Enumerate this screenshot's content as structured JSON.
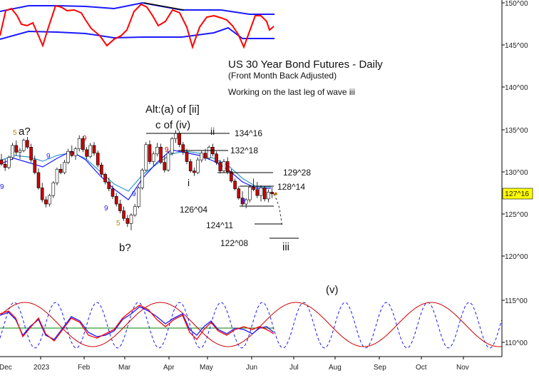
{
  "chart_data": {
    "type": "candlestick",
    "title": "US 30 Year Bond Futures - Daily",
    "subtitle": "(Front Month Back Adjusted)",
    "comment": "Working on the last leg of wave iii",
    "y_axis": {
      "range": [
        110,
        150
      ],
      "ticks": [
        "150^00",
        "145^00",
        "140^00",
        "135^00",
        "130^00",
        "125^00",
        "120^00",
        "115^00",
        "110^00"
      ]
    },
    "x_axis": {
      "labels": [
        "Dec",
        "2023",
        "Feb",
        "Mar",
        "Apr",
        "May",
        "Jun",
        "Jul",
        "Aug",
        "Sep",
        "Oct",
        "Nov"
      ]
    },
    "last_price": "127^16",
    "accent_color": "#ffff00",
    "candle_up_color": "#ffffff",
    "candle_down_color": "#cc0000",
    "ma_colors": [
      "#1a1aff",
      "#3399cc"
    ],
    "candles": [
      [
        131.5,
        132.2,
        130.8,
        131.0
      ],
      [
        131.0,
        131.6,
        130.2,
        130.6
      ],
      [
        130.6,
        132.0,
        130.4,
        131.8
      ],
      [
        131.8,
        133.5,
        131.5,
        133.2
      ],
      [
        133.2,
        133.8,
        132.0,
        132.4
      ],
      [
        132.4,
        132.9,
        131.6,
        132.6
      ],
      [
        132.6,
        134.0,
        132.4,
        133.8
      ],
      [
        133.8,
        134.2,
        132.8,
        133.0
      ],
      [
        133.0,
        133.4,
        131.2,
        131.5
      ],
      [
        131.5,
        132.0,
        129.8,
        130.0
      ],
      [
        130.0,
        130.5,
        128.0,
        128.2
      ],
      [
        128.2,
        128.8,
        126.5,
        126.8
      ],
      [
        126.8,
        127.2,
        125.9,
        126.3
      ],
      [
        126.3,
        127.5,
        126.0,
        127.3
      ],
      [
        127.3,
        129.0,
        127.0,
        128.8
      ],
      [
        128.8,
        130.6,
        128.5,
        130.4
      ],
      [
        130.4,
        131.0,
        129.8,
        130.0
      ],
      [
        130.0,
        131.5,
        129.8,
        131.2
      ],
      [
        131.2,
        132.8,
        131.0,
        132.5
      ],
      [
        132.5,
        133.2,
        131.8,
        132.0
      ],
      [
        132.0,
        133.0,
        131.5,
        132.8
      ],
      [
        132.8,
        134.4,
        132.5,
        134.0
      ],
      [
        134.0,
        134.3,
        132.4,
        132.7
      ],
      [
        132.7,
        133.0,
        131.6,
        131.9
      ],
      [
        131.9,
        133.5,
        131.7,
        133.2
      ],
      [
        133.2,
        133.6,
        132.0,
        132.3
      ],
      [
        132.3,
        132.6,
        130.6,
        130.9
      ],
      [
        130.9,
        131.2,
        129.5,
        129.8
      ],
      [
        129.8,
        130.0,
        128.6,
        128.9
      ],
      [
        128.9,
        129.4,
        127.8,
        128.1
      ],
      [
        128.1,
        128.5,
        126.9,
        127.2
      ],
      [
        127.2,
        127.6,
        126.0,
        126.3
      ],
      [
        126.3,
        126.8,
        125.2,
        125.5
      ],
      [
        125.5,
        126.0,
        124.3,
        124.6
      ],
      [
        124.6,
        125.0,
        123.6,
        124.0
      ],
      [
        124.0,
        125.2,
        123.2,
        125.0
      ],
      [
        125.0,
        126.3,
        124.8,
        126.0
      ],
      [
        126.0,
        128.4,
        125.8,
        128.2
      ],
      [
        128.2,
        130.5,
        128.0,
        130.3
      ],
      [
        130.3,
        133.6,
        130.1,
        133.3
      ],
      [
        133.3,
        133.8,
        131.0,
        131.3
      ],
      [
        131.3,
        132.5,
        130.8,
        132.2
      ],
      [
        132.2,
        133.5,
        131.9,
        133.0
      ],
      [
        133.0,
        133.4,
        131.0,
        131.2
      ],
      [
        131.2,
        132.0,
        130.0,
        130.3
      ],
      [
        130.3,
        132.5,
        130.1,
        132.3
      ],
      [
        132.3,
        134.2,
        132.0,
        134.0
      ],
      [
        134.0,
        135.0,
        133.5,
        134.6
      ],
      [
        134.6,
        134.9,
        133.0,
        133.3
      ],
      [
        133.3,
        133.6,
        132.1,
        132.4
      ],
      [
        132.4,
        132.8,
        131.0,
        131.3
      ],
      [
        131.3,
        131.6,
        130.0,
        130.2
      ],
      [
        130.2,
        130.6,
        129.6,
        130.0
      ],
      [
        130.0,
        131.8,
        129.8,
        131.5
      ],
      [
        131.5,
        132.6,
        131.2,
        132.3
      ],
      [
        132.3,
        132.8,
        131.4,
        131.7
      ],
      [
        131.7,
        133.2,
        131.5,
        133.0
      ],
      [
        133.0,
        133.4,
        131.9,
        132.2
      ],
      [
        132.2,
        132.5,
        130.9,
        131.2
      ],
      [
        131.2,
        131.5,
        129.9,
        130.2
      ],
      [
        130.2,
        131.6,
        130.0,
        131.3
      ],
      [
        131.3,
        131.8,
        129.8,
        130.1
      ],
      [
        130.1,
        130.4,
        128.8,
        129.0
      ],
      [
        129.0,
        129.3,
        127.9,
        128.1
      ],
      [
        128.1,
        128.4,
        126.8,
        127.0
      ],
      [
        127.0,
        127.8,
        126.0,
        126.3
      ],
      [
        126.3,
        127.0,
        125.8,
        126.8
      ],
      [
        126.8,
        128.5,
        126.5,
        128.3
      ],
      [
        128.3,
        129.3,
        127.8,
        128.0
      ],
      [
        128.0,
        128.9,
        127.0,
        127.3
      ],
      [
        127.3,
        128.5,
        126.6,
        128.2
      ],
      [
        128.2,
        128.4,
        126.6,
        126.9
      ],
      [
        126.9,
        128.0,
        126.5,
        127.7
      ],
      [
        127.7,
        128.3,
        127.0,
        127.5
      ]
    ],
    "projection": [
      [
        127.5,
        127.3
      ],
      [
        127.0,
        126.0
      ],
      [
        126.0,
        124.8
      ],
      [
        124.8,
        123.9
      ]
    ],
    "price_levels": [
      {
        "label": "134^16",
        "value": 134.5
      },
      {
        "label": "132^18",
        "value": 132.56
      },
      {
        "label": "129^28",
        "value": 129.875
      },
      {
        "label": "128^14",
        "value": 128.44
      },
      {
        "label": "126^04",
        "value": 126.125
      },
      {
        "label": "124^11",
        "value": 124.34
      },
      {
        "label": "122^08",
        "value": 122.25
      }
    ],
    "wave_labels": [
      "Alt:(a) of [ii]",
      "c of (iv)",
      "ii",
      "a?",
      "b?",
      "i",
      "iii",
      "(v)"
    ],
    "count_markers": [
      "5",
      "9",
      "9",
      "9",
      "5",
      "9",
      "9",
      "9",
      "9"
    ],
    "oscillator_top": {
      "colors": [
        "#ff0000",
        "#1a1aff",
        "#000000"
      ]
    },
    "oscillator_bottom": {
      "colors": [
        "#1a1aff",
        "#cc0000",
        "#ff0000",
        "#008000"
      ]
    }
  }
}
